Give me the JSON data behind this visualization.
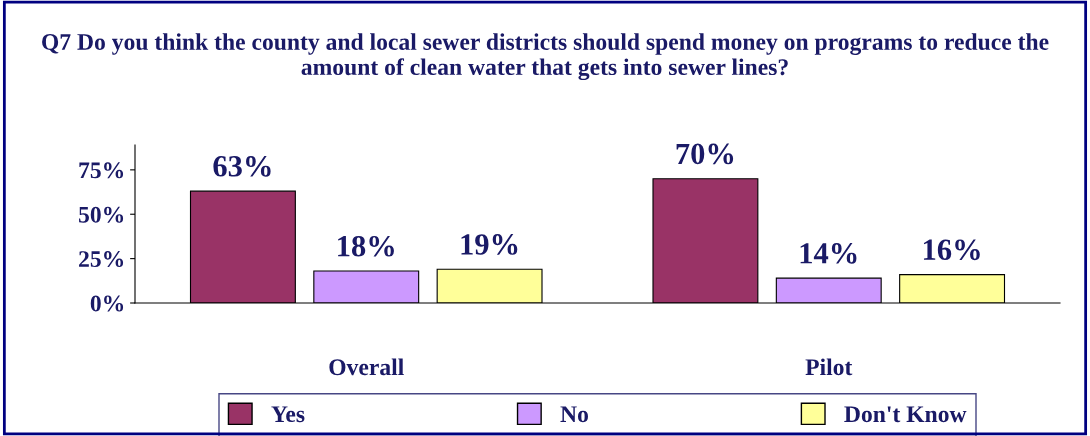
{
  "chart_data": {
    "type": "bar",
    "title": "Q7 Do you think the county and local sewer districts should spend money on programs to reduce the amount of clean water that gets into sewer lines?",
    "categories": [
      "Overall",
      "Pilot"
    ],
    "series": [
      {
        "name": "Yes",
        "color": "#993366",
        "values": [
          63,
          70
        ],
        "value_labels": [
          "63%",
          "70%"
        ]
      },
      {
        "name": "No",
        "color": "#cc99ff",
        "values": [
          18,
          14
        ],
        "value_labels": [
          "18%",
          "14%"
        ]
      },
      {
        "name": "Don't Know",
        "color": "#ffff99",
        "values": [
          19,
          16
        ],
        "value_labels": [
          "19%",
          "16%"
        ]
      }
    ],
    "ylim": [
      0,
      89
    ],
    "yticks": [
      {
        "value": 0,
        "label": "0%"
      },
      {
        "value": 25,
        "label": "25%"
      },
      {
        "value": 50,
        "label": "50%"
      },
      {
        "value": 75,
        "label": "75%"
      }
    ],
    "grid": false,
    "legend": "bottom"
  }
}
